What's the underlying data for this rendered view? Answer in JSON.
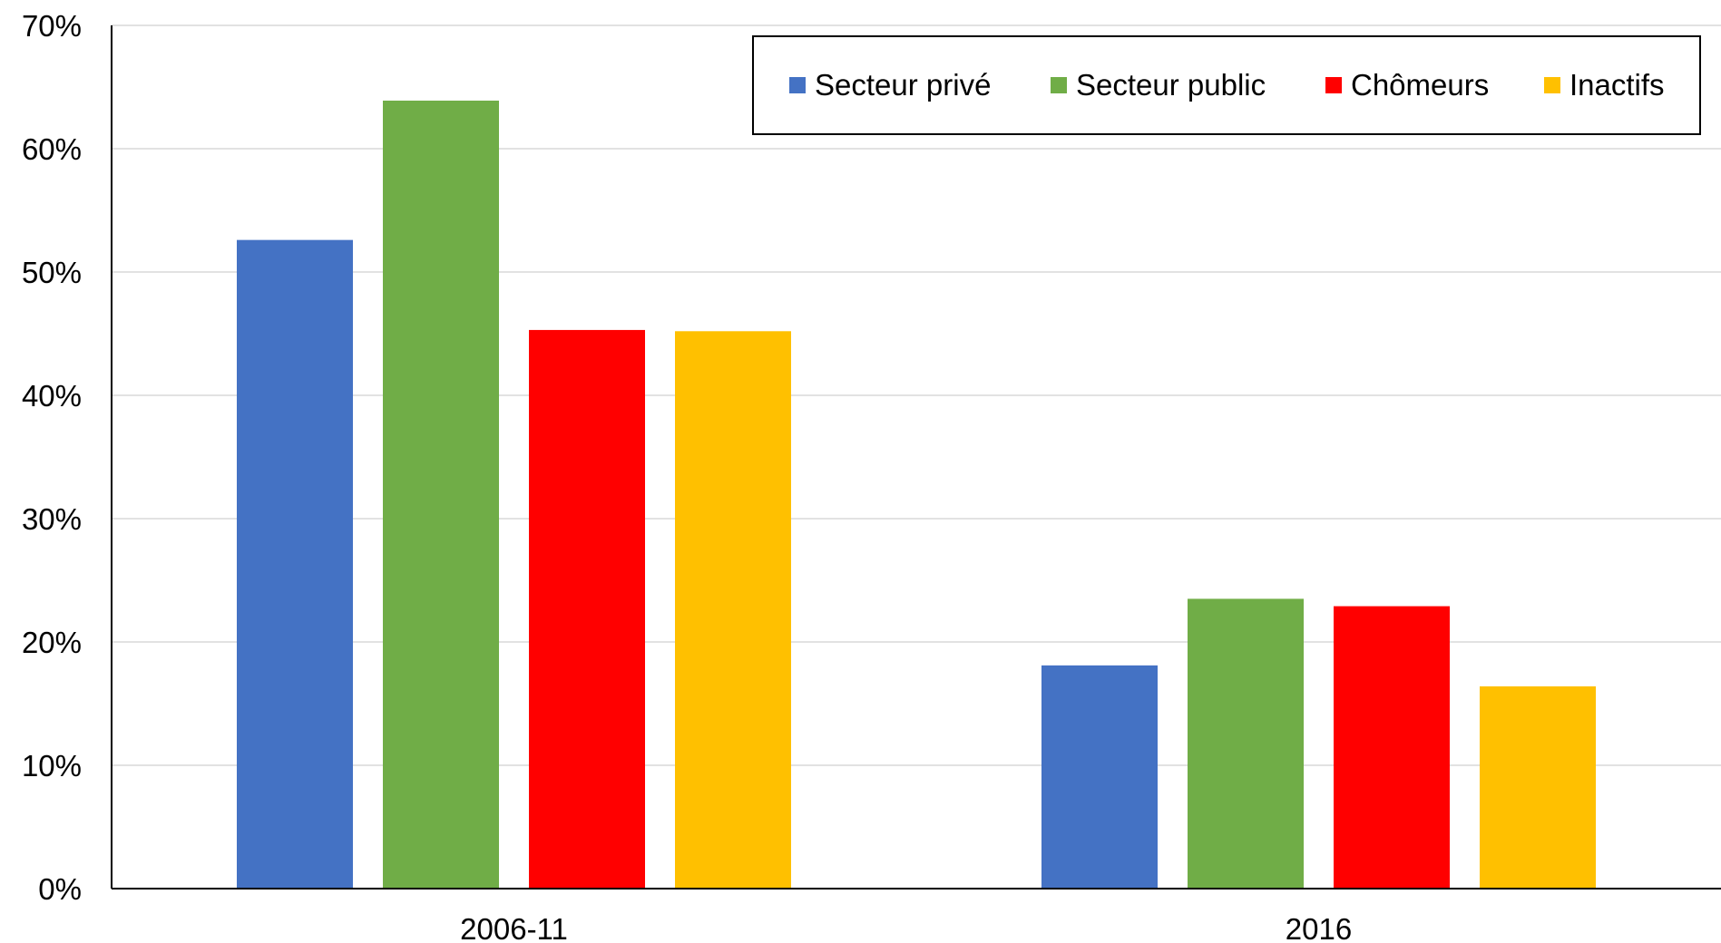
{
  "chart_data": {
    "type": "bar",
    "categories": [
      "2006-11",
      "2016"
    ],
    "series": [
      {
        "name": "Secteur privé",
        "color": "#4472C4",
        "values": [
          52.6,
          18.1
        ]
      },
      {
        "name": "Secteur public",
        "color": "#70AD47",
        "values": [
          63.9,
          23.5
        ]
      },
      {
        "name": "Chômeurs",
        "color": "#FF0000",
        "values": [
          45.3,
          22.9
        ]
      },
      {
        "name": "Inactifs",
        "color": "#FFC000",
        "values": [
          45.2,
          16.4
        ]
      }
    ],
    "ylim": [
      0,
      70
    ],
    "yticks": [
      "0%",
      "10%",
      "20%",
      "30%",
      "40%",
      "50%",
      "60%",
      "70%"
    ],
    "grid": true,
    "legend_position": "top-right"
  }
}
